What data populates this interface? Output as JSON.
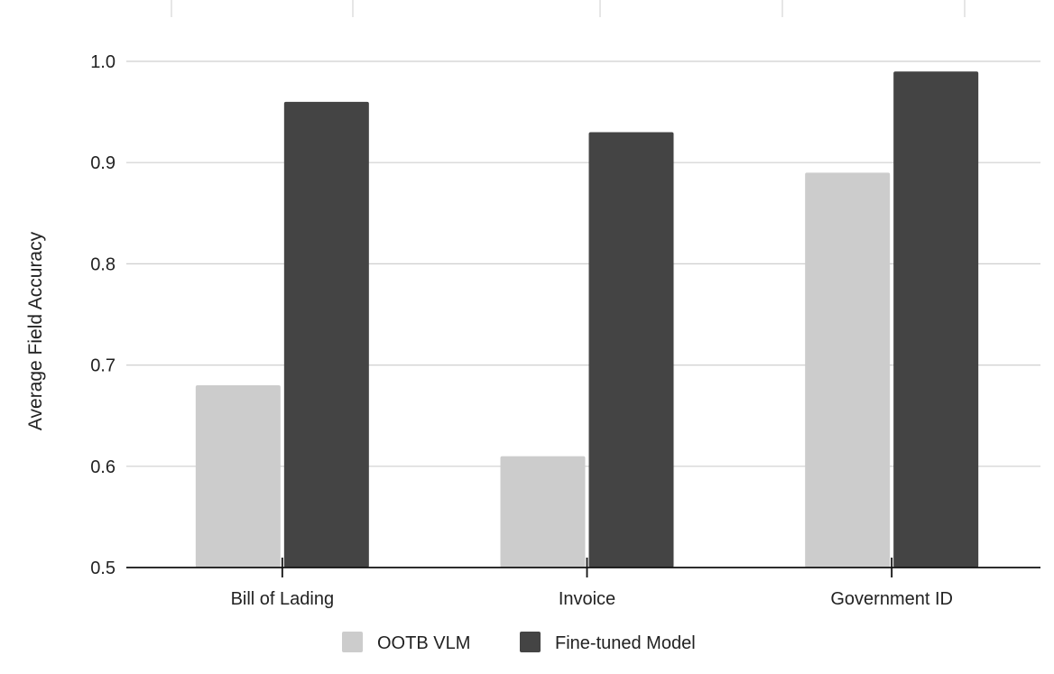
{
  "chart_data": {
    "type": "bar",
    "title": "",
    "xlabel": "",
    "ylabel": "Average Field Accuracy",
    "ylim": [
      0.5,
      1.0
    ],
    "yticks": [
      "0.5",
      "0.6",
      "0.7",
      "0.8",
      "0.9",
      "1.0"
    ],
    "grid": true,
    "legend_position": "bottom",
    "categories": [
      "Bill of Lading",
      "Invoice",
      "Government ID"
    ],
    "series": [
      {
        "name": "OOTB VLM",
        "color": "#cccccc",
        "values": [
          0.68,
          0.61,
          0.89
        ]
      },
      {
        "name": "Fine-tuned Model",
        "color": "#444444",
        "values": [
          0.96,
          0.93,
          0.99
        ]
      }
    ]
  }
}
